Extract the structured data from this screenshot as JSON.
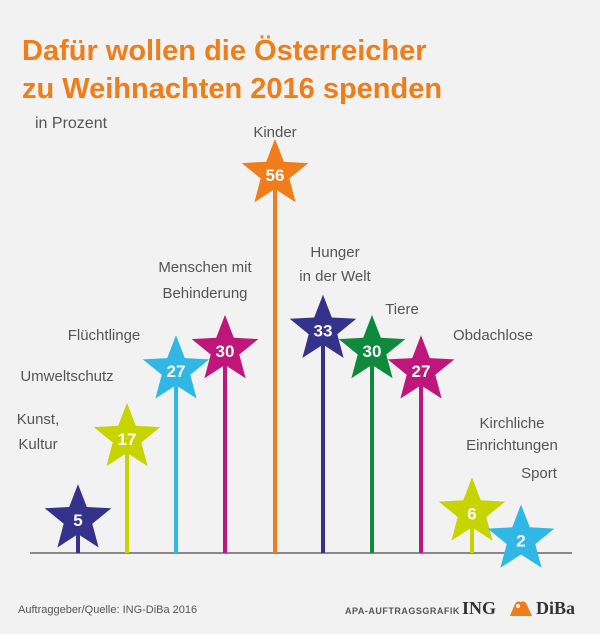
{
  "chart_data": {
    "type": "bar",
    "title_line1": "Dafür wollen die Österreicher",
    "title_line2": "zu Weihnachten 2016 spenden",
    "unit_label": "in Prozent",
    "categories": [
      {
        "label": [
          "Kunst,",
          "Kultur"
        ],
        "value": 5,
        "color": "#34328a"
      },
      {
        "label": [
          "Umweltschutz"
        ],
        "value": 17,
        "color": "#c8d400"
      },
      {
        "label": [
          "Flüchtlinge"
        ],
        "value": 27,
        "color": "#31b7e6"
      },
      {
        "label": [
          "Menschen mit",
          "Behinderung"
        ],
        "value": 30,
        "color": "#c0157a"
      },
      {
        "label": [
          "Kinder"
        ],
        "value": 56,
        "color": "#ee7d1a"
      },
      {
        "label": [
          "Hunger",
          "in der Welt"
        ],
        "value": 33,
        "color": "#34328a"
      },
      {
        "label": [
          "Tiere"
        ],
        "value": 30,
        "color": "#0f8a3c"
      },
      {
        "label": [
          "Obdachlose"
        ],
        "value": 27,
        "color": "#c0157a"
      },
      {
        "label": [
          "Kirchliche",
          "Einrichtungen"
        ],
        "value": 6,
        "color": "#c8d400"
      },
      {
        "label": [
          "Sport"
        ],
        "value": 2,
        "color": "#31b7e6"
      }
    ],
    "ylim": [
      0,
      60
    ]
  },
  "footer": {
    "source": "Auftraggeber/Quelle: ING-DiBa 2016",
    "agency": "APA-AUFTRAGSGRAFIK",
    "logo_left": "ING",
    "logo_right": "DiBa",
    "logo_color": "#ee7d1a"
  }
}
